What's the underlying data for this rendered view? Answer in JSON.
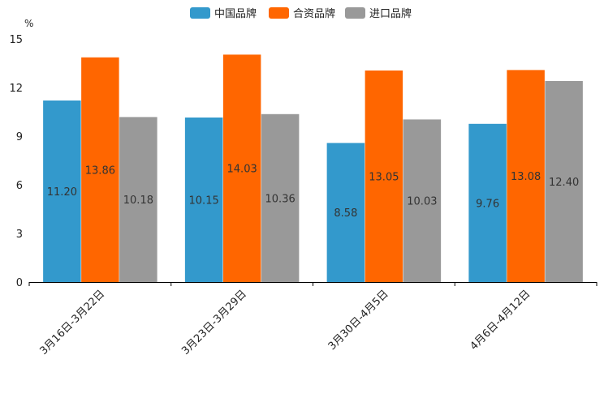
{
  "chart_data": {
    "type": "bar",
    "unit": "%",
    "categories": [
      "3月16日-3月22日",
      "3月23日-3月29日",
      "3月30日-4月5日",
      "4月6日-4月12日"
    ],
    "series": [
      {
        "name": "中国品牌",
        "color": "#3399CC",
        "values": [
          11.2,
          10.15,
          8.58,
          9.76
        ],
        "labels": [
          "11.20",
          "10.15",
          "8.58",
          "9.76"
        ]
      },
      {
        "name": "合资品牌",
        "color": "#FF6600",
        "values": [
          13.86,
          14.03,
          13.05,
          13.08
        ],
        "labels": [
          "13.86",
          "14.03",
          "13.05",
          "13.08"
        ]
      },
      {
        "name": "进口品牌",
        "color": "#999999",
        "values": [
          10.18,
          10.36,
          10.03,
          12.4
        ],
        "labels": [
          "10.18",
          "10.36",
          "10.03",
          "12.40"
        ]
      }
    ],
    "y_ticks": [
      0,
      3,
      6,
      9,
      12,
      15
    ],
    "ylim": [
      0,
      15
    ],
    "legend_position": "top-center",
    "grid": false
  }
}
